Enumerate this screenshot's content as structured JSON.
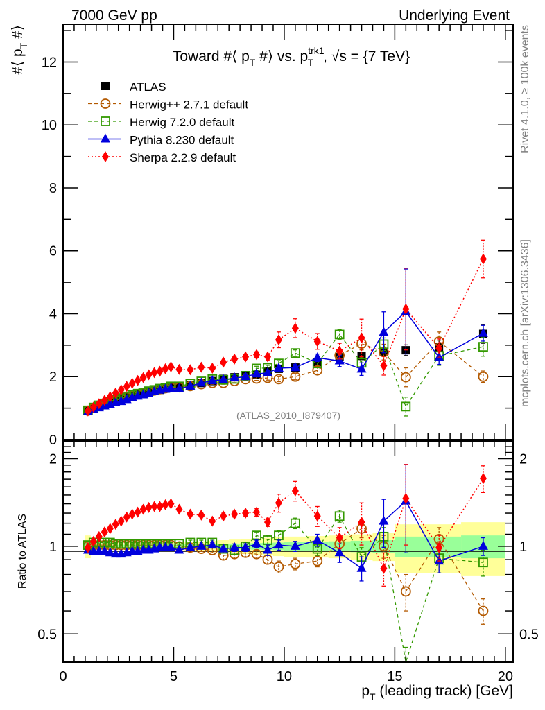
{
  "header": {
    "left_label": "7000 GeV pp",
    "right_label": "Underlying Event"
  },
  "side_labels": {
    "rivet": "Rivet 4.1.0, ≥ 100k events",
    "mcplots": "mcplots.cern.ch [arXiv:1306.3436]"
  },
  "colors": {
    "ATLAS": "#000000",
    "Herwig++ 2.7.1 default": "#b35900",
    "Herwig 7.2.0 default": "#339900",
    "Pythia 8.230 default": "#0000dd",
    "Sherpa 2.2.9 default": "#ff0000",
    "band_inner": "#99ff99",
    "band_outer": "#ffff99",
    "watermark": "#808080"
  },
  "chart_data": [
    {
      "type": "line",
      "panel": "main",
      "title": "Toward #⟨ p_T #⟩ vs. p_T^trk1, √s = {7 TeV}",
      "title_parts": {
        "pre": "Toward #⟨ p",
        "sub1": "T",
        "mid": " #⟩ vs. p",
        "sup": "trk1",
        "sub2": "T",
        "post": ", √s = {7 TeV}"
      },
      "ylabel": "#⟨ p_T #⟩",
      "ylabel_parts": {
        "pre": "#⟨ p",
        "sub": "T",
        "post": " #⟩"
      },
      "xlabel": "p_T (leading track) [GeV]",
      "xlim": [
        0,
        20.35
      ],
      "ylim": [
        0,
        13.2
      ],
      "yticks": [
        0,
        2,
        4,
        6,
        8,
        10,
        12
      ],
      "xticks": [
        0,
        5,
        10,
        15,
        20
      ],
      "watermark": "(ATLAS_2010_I879407)",
      "legend_position": "top-left",
      "x": [
        1.125,
        1.375,
        1.625,
        1.875,
        2.125,
        2.375,
        2.625,
        2.875,
        3.125,
        3.375,
        3.625,
        3.875,
        4.125,
        4.375,
        4.625,
        4.875,
        5.25,
        5.75,
        6.25,
        6.75,
        7.25,
        7.75,
        8.25,
        8.75,
        9.25,
        9.75,
        10.5,
        11.5,
        12.5,
        13.5,
        14.5,
        15.5,
        17,
        19
      ],
      "series": [
        {
          "name": "ATLAS",
          "style": "data",
          "values": [
            0.92,
            0.99,
            1.06,
            1.12,
            1.18,
            1.24,
            1.29,
            1.34,
            1.39,
            1.43,
            1.47,
            1.51,
            1.55,
            1.58,
            1.62,
            1.65,
            1.66,
            1.72,
            1.8,
            1.86,
            1.93,
            1.98,
            2.02,
            2.06,
            2.18,
            2.25,
            2.29,
            2.46,
            2.62,
            2.66,
            2.79,
            2.84,
            2.94,
            3.36
          ],
          "errors": [
            0.01,
            0.01,
            0.01,
            0.01,
            0.01,
            0.01,
            0.01,
            0.01,
            0.01,
            0.01,
            0.02,
            0.02,
            0.02,
            0.02,
            0.02,
            0.02,
            0.02,
            0.02,
            0.03,
            0.03,
            0.03,
            0.04,
            0.04,
            0.05,
            0.05,
            0.06,
            0.07,
            0.08,
            0.1,
            0.12,
            0.14,
            0.17,
            0.22,
            0.3
          ]
        },
        {
          "name": "Herwig++ 2.7.1 default",
          "style": "dashed-circle",
          "values": [
            0.92,
            1.0,
            1.07,
            1.13,
            1.19,
            1.25,
            1.3,
            1.35,
            1.4,
            1.44,
            1.48,
            1.52,
            1.56,
            1.6,
            1.63,
            1.66,
            1.66,
            1.7,
            1.76,
            1.8,
            1.8,
            1.86,
            1.92,
            1.94,
            1.96,
            1.92,
            2.0,
            2.2,
            2.68,
            3.05,
            2.78,
            1.98,
            3.12,
            2.0
          ],
          "errors": [
            0.01,
            0.01,
            0.01,
            0.01,
            0.01,
            0.01,
            0.01,
            0.01,
            0.01,
            0.01,
            0.01,
            0.01,
            0.02,
            0.02,
            0.02,
            0.02,
            0.02,
            0.03,
            0.03,
            0.04,
            0.04,
            0.05,
            0.05,
            0.06,
            0.07,
            0.08,
            0.1,
            0.12,
            0.15,
            0.2,
            0.25,
            0.3,
            0.3,
            0.18
          ]
        },
        {
          "name": "Herwig 7.2.0 default",
          "style": "dashed-square",
          "values": [
            0.93,
            1.02,
            1.09,
            1.15,
            1.21,
            1.27,
            1.32,
            1.37,
            1.42,
            1.46,
            1.5,
            1.54,
            1.58,
            1.62,
            1.65,
            1.69,
            1.69,
            1.78,
            1.85,
            1.92,
            1.9,
            1.93,
            2.03,
            2.26,
            2.28,
            2.42,
            2.75,
            2.42,
            3.34,
            2.44,
            3.03,
            1.05,
            2.66,
            2.95
          ],
          "errors": [
            0.01,
            0.01,
            0.01,
            0.01,
            0.01,
            0.01,
            0.01,
            0.01,
            0.01,
            0.01,
            0.01,
            0.02,
            0.02,
            0.02,
            0.02,
            0.02,
            0.02,
            0.03,
            0.03,
            0.04,
            0.04,
            0.05,
            0.06,
            0.07,
            0.08,
            0.09,
            0.1,
            0.12,
            0.15,
            0.18,
            0.2,
            0.3,
            0.3,
            0.3
          ]
        },
        {
          "name": "Pythia 8.230 default",
          "style": "solid-triangle",
          "values": [
            0.89,
            0.95,
            1.01,
            1.07,
            1.12,
            1.17,
            1.21,
            1.27,
            1.33,
            1.38,
            1.42,
            1.46,
            1.52,
            1.57,
            1.6,
            1.63,
            1.62,
            1.7,
            1.8,
            1.87,
            1.9,
            1.96,
            2.0,
            2.09,
            2.12,
            2.27,
            2.29,
            2.6,
            2.5,
            2.24,
            3.41,
            4.07,
            2.61,
            3.38
          ],
          "errors": [
            0.01,
            0.01,
            0.01,
            0.01,
            0.01,
            0.01,
            0.01,
            0.01,
            0.01,
            0.01,
            0.01,
            0.01,
            0.02,
            0.02,
            0.02,
            0.02,
            0.02,
            0.03,
            0.03,
            0.04,
            0.04,
            0.05,
            0.05,
            0.06,
            0.07,
            0.08,
            0.1,
            0.12,
            0.18,
            0.2,
            0.65,
            1.35,
            0.22,
            0.25
          ]
        },
        {
          "name": "Sherpa 2.2.9 default",
          "style": "dotted-diamond",
          "values": [
            0.91,
            1.03,
            1.14,
            1.25,
            1.36,
            1.48,
            1.58,
            1.69,
            1.79,
            1.88,
            1.97,
            2.06,
            2.13,
            2.17,
            2.25,
            2.31,
            2.23,
            2.22,
            2.3,
            2.27,
            2.46,
            2.56,
            2.63,
            2.7,
            2.63,
            3.17,
            3.54,
            3.12,
            2.81,
            3.23,
            2.35,
            4.15,
            2.9,
            5.74
          ],
          "errors": [
            0.01,
            0.01,
            0.01,
            0.01,
            0.01,
            0.01,
            0.01,
            0.02,
            0.02,
            0.02,
            0.02,
            0.02,
            0.03,
            0.03,
            0.03,
            0.03,
            0.04,
            0.04,
            0.05,
            0.05,
            0.06,
            0.07,
            0.08,
            0.09,
            0.1,
            0.25,
            0.3,
            0.25,
            0.25,
            0.6,
            0.3,
            1.3,
            0.3,
            0.6
          ]
        }
      ]
    },
    {
      "type": "line",
      "panel": "ratio",
      "ylabel": "Ratio to ATLAS",
      "yscale": "log",
      "ylim": [
        0.4,
        2.3
      ],
      "yticks": [
        0.5,
        1,
        2
      ],
      "ytick_labels": [
        "0.5",
        "1",
        "2"
      ],
      "xlim": [
        0,
        20.35
      ],
      "xticks": [
        0,
        5,
        10,
        15,
        20
      ],
      "xtick_labels": [
        "0",
        "5",
        "10",
        "15",
        "20"
      ],
      "xlabel": "p_T (leading track) [GeV]",
      "xlabel_parts": {
        "pre": "p",
        "sub": "T",
        "post": " (leading track) [GeV]"
      },
      "reference_line": 1,
      "band_edges": [
        1.0,
        1.25,
        1.5,
        1.75,
        2.0,
        2.25,
        2.5,
        2.75,
        3.0,
        3.25,
        3.5,
        3.75,
        4.0,
        4.25,
        4.5,
        4.75,
        5.0,
        5.5,
        6.0,
        6.5,
        7.0,
        7.5,
        8.0,
        8.5,
        9.0,
        9.5,
        10.0,
        11.0,
        12.0,
        13.0,
        14.0,
        15.0,
        16.0,
        18.0,
        20.0
      ],
      "band_inner": [
        0.035,
        0.015,
        0.012,
        0.012,
        0.012,
        0.012,
        0.012,
        0.012,
        0.012,
        0.012,
        0.013,
        0.013,
        0.013,
        0.013,
        0.014,
        0.014,
        0.015,
        0.016,
        0.017,
        0.018,
        0.02,
        0.022,
        0.024,
        0.026,
        0.028,
        0.03,
        0.035,
        0.038,
        0.04,
        0.045,
        0.05,
        0.08,
        0.08,
        0.09
      ],
      "band_outer": [
        0.09,
        0.03,
        0.025,
        0.025,
        0.025,
        0.025,
        0.025,
        0.025,
        0.025,
        0.025,
        0.025,
        0.028,
        0.028,
        0.03,
        0.03,
        0.03,
        0.03,
        0.035,
        0.04,
        0.045,
        0.05,
        0.055,
        0.06,
        0.065,
        0.07,
        0.075,
        0.08,
        0.085,
        0.09,
        0.1,
        0.11,
        0.19,
        0.19,
        0.21
      ],
      "x": [
        1.125,
        1.375,
        1.625,
        1.875,
        2.125,
        2.375,
        2.625,
        2.875,
        3.125,
        3.375,
        3.625,
        3.875,
        4.125,
        4.375,
        4.625,
        4.875,
        5.25,
        5.75,
        6.25,
        6.75,
        7.25,
        7.75,
        8.25,
        8.75,
        9.25,
        9.75,
        10.5,
        11.5,
        12.5,
        13.5,
        14.5,
        15.5,
        17,
        19
      ],
      "series": [
        {
          "name": "Herwig++ 2.7.1 default",
          "style": "dashed-circle",
          "values": [
            1.0,
            1.01,
            1.01,
            1.01,
            1.01,
            1.01,
            1.01,
            1.01,
            1.01,
            1.01,
            1.01,
            1.01,
            1.01,
            1.01,
            1.01,
            1.01,
            1.0,
            0.99,
            0.98,
            0.97,
            0.93,
            0.94,
            0.95,
            0.94,
            0.9,
            0.85,
            0.87,
            0.89,
            1.02,
            1.15,
            1.0,
            0.7,
            1.06,
            0.6
          ],
          "errors": [
            0.01,
            0.01,
            0.01,
            0.01,
            0.01,
            0.01,
            0.01,
            0.01,
            0.01,
            0.01,
            0.01,
            0.01,
            0.01,
            0.01,
            0.01,
            0.01,
            0.01,
            0.02,
            0.02,
            0.02,
            0.03,
            0.03,
            0.03,
            0.03,
            0.03,
            0.04,
            0.04,
            0.04,
            0.06,
            0.08,
            0.09,
            0.1,
            0.1,
            0.06
          ]
        },
        {
          "name": "Herwig 7.2.0 default",
          "style": "dashed-square",
          "values": [
            1.01,
            1.03,
            1.03,
            1.03,
            1.03,
            1.02,
            1.02,
            1.02,
            1.02,
            1.02,
            1.02,
            1.02,
            1.02,
            1.02,
            1.02,
            1.02,
            1.02,
            1.03,
            1.03,
            1.03,
            0.98,
            0.97,
            1.0,
            1.09,
            1.05,
            1.09,
            1.2,
            0.98,
            1.27,
            0.92,
            1.08,
            0.35,
            0.91,
            0.88
          ],
          "errors": [
            0.01,
            0.01,
            0.01,
            0.01,
            0.01,
            0.01,
            0.01,
            0.01,
            0.01,
            0.01,
            0.01,
            0.01,
            0.01,
            0.01,
            0.01,
            0.01,
            0.01,
            0.02,
            0.02,
            0.02,
            0.02,
            0.03,
            0.03,
            0.03,
            0.04,
            0.04,
            0.05,
            0.05,
            0.06,
            0.07,
            0.08,
            0.1,
            0.1,
            0.09
          ]
        },
        {
          "name": "Pythia 8.230 default",
          "style": "solid-triangle",
          "values": [
            0.97,
            0.96,
            0.96,
            0.96,
            0.95,
            0.94,
            0.94,
            0.95,
            0.96,
            0.96,
            0.97,
            0.97,
            0.98,
            0.99,
            0.99,
            0.99,
            0.97,
            0.99,
            1.0,
            1.01,
            0.98,
            0.99,
            0.99,
            1.02,
            0.97,
            1.01,
            1.0,
            1.05,
            0.95,
            0.84,
            1.22,
            1.43,
            0.89,
            1.0
          ],
          "errors": [
            0.01,
            0.01,
            0.01,
            0.01,
            0.01,
            0.01,
            0.01,
            0.01,
            0.01,
            0.01,
            0.01,
            0.01,
            0.01,
            0.01,
            0.01,
            0.01,
            0.01,
            0.02,
            0.02,
            0.02,
            0.02,
            0.03,
            0.03,
            0.03,
            0.04,
            0.04,
            0.04,
            0.05,
            0.07,
            0.08,
            0.23,
            0.48,
            0.08,
            0.07
          ]
        },
        {
          "name": "Sherpa 2.2.9 default",
          "style": "dotted-diamond",
          "values": [
            0.99,
            1.04,
            1.08,
            1.12,
            1.15,
            1.19,
            1.22,
            1.26,
            1.29,
            1.31,
            1.34,
            1.36,
            1.37,
            1.37,
            1.39,
            1.4,
            1.34,
            1.29,
            1.28,
            1.22,
            1.27,
            1.29,
            1.3,
            1.31,
            1.21,
            1.41,
            1.55,
            1.27,
            1.07,
            1.21,
            0.84,
            1.46,
            0.99,
            1.71
          ],
          "errors": [
            0.01,
            0.01,
            0.01,
            0.01,
            0.01,
            0.01,
            0.01,
            0.01,
            0.01,
            0.01,
            0.01,
            0.01,
            0.01,
            0.01,
            0.01,
            0.01,
            0.02,
            0.02,
            0.02,
            0.02,
            0.03,
            0.03,
            0.03,
            0.04,
            0.04,
            0.1,
            0.12,
            0.1,
            0.09,
            0.2,
            0.11,
            0.45,
            0.1,
            0.18
          ]
        }
      ]
    }
  ]
}
